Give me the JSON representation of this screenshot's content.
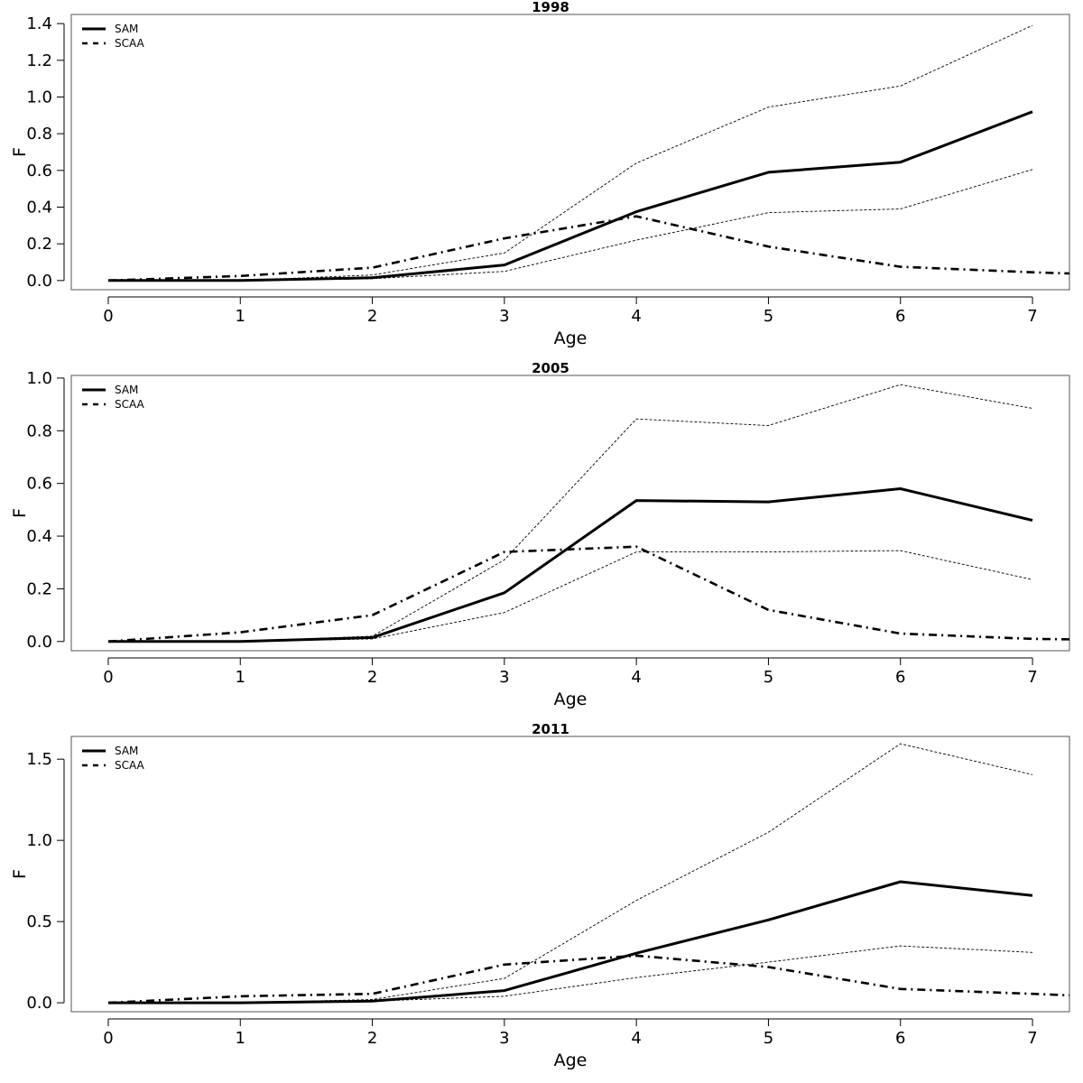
{
  "chart_data": [
    {
      "type": "line",
      "title": "1998",
      "xlabel": "Age",
      "ylabel": "F",
      "x": [
        0,
        1,
        2,
        3,
        4,
        5,
        6,
        7
      ],
      "xlim": [
        -0.28,
        7.28
      ],
      "ylim": [
        -0.05,
        1.45
      ],
      "yticks": [
        0.0,
        0.2,
        0.4,
        0.6,
        0.8,
        1.0,
        1.2,
        1.4
      ],
      "ytick_labels": [
        "0.0",
        "0.2",
        "0.4",
        "0.6",
        "0.8",
        "1.0",
        "1.2",
        "1.4"
      ],
      "xtick_labels": [
        "0",
        "1",
        "2",
        "3",
        "4",
        "5",
        "6",
        "7"
      ],
      "legend": {
        "position": "top-left",
        "entries": [
          "SAM",
          "SCAA"
        ]
      },
      "series": [
        {
          "name": "SAM",
          "style": "solid",
          "values": [
            0.0,
            0.0,
            0.015,
            0.085,
            0.375,
            0.59,
            0.645,
            0.92
          ]
        },
        {
          "name": "SCAA",
          "style": "dashdot",
          "x": [
            0,
            1,
            2,
            3,
            4,
            5,
            6,
            7,
            7.3
          ],
          "values": [
            0.0,
            0.025,
            0.07,
            0.23,
            0.35,
            0.185,
            0.075,
            0.045,
            0.038
          ]
        },
        {
          "name": "",
          "style": "dotted",
          "values": [
            0.0,
            0.0,
            0.03,
            0.15,
            0.64,
            0.945,
            1.06,
            1.39
          ]
        },
        {
          "name": "",
          "style": "dotted",
          "values": [
            0.0,
            0.0,
            0.01,
            0.05,
            0.22,
            0.37,
            0.39,
            0.605
          ]
        }
      ]
    },
    {
      "type": "line",
      "title": "2005",
      "xlabel": "Age",
      "ylabel": "F",
      "x": [
        0,
        1,
        2,
        3,
        4,
        5,
        6,
        7
      ],
      "xlim": [
        -0.28,
        7.28
      ],
      "ylim": [
        -0.035,
        1.01
      ],
      "yticks": [
        0.0,
        0.2,
        0.4,
        0.6,
        0.8,
        1.0
      ],
      "ytick_labels": [
        "0.0",
        "0.2",
        "0.4",
        "0.6",
        "0.8",
        "1.0"
      ],
      "xtick_labels": [
        "0",
        "1",
        "2",
        "3",
        "4",
        "5",
        "6",
        "7"
      ],
      "legend": {
        "position": "top-left",
        "entries": [
          "SAM",
          "SCAA"
        ]
      },
      "series": [
        {
          "name": "SAM",
          "style": "solid",
          "values": [
            0.0,
            0.0,
            0.015,
            0.185,
            0.535,
            0.53,
            0.58,
            0.46
          ]
        },
        {
          "name": "SCAA",
          "style": "dashdot",
          "x": [
            0,
            1,
            2,
            3,
            4,
            5,
            6,
            7,
            7.3
          ],
          "values": [
            0.0,
            0.035,
            0.1,
            0.34,
            0.36,
            0.12,
            0.03,
            0.01,
            0.008
          ]
        },
        {
          "name": "",
          "style": "dotted",
          "values": [
            0.0,
            0.0,
            0.02,
            0.31,
            0.845,
            0.82,
            0.975,
            0.885
          ]
        },
        {
          "name": "",
          "style": "dotted",
          "values": [
            0.0,
            0.0,
            0.01,
            0.11,
            0.34,
            0.34,
            0.345,
            0.235
          ]
        }
      ]
    },
    {
      "type": "line",
      "title": "2011",
      "xlabel": "Age",
      "ylabel": "F",
      "x": [
        0,
        1,
        2,
        3,
        4,
        5,
        6,
        7
      ],
      "xlim": [
        -0.28,
        7.28
      ],
      "ylim": [
        -0.055,
        1.64
      ],
      "yticks": [
        0.0,
        0.5,
        1.0,
        1.5
      ],
      "ytick_labels": [
        "0.0",
        "0.5",
        "1.0",
        "1.5"
      ],
      "xtick_labels": [
        "0",
        "1",
        "2",
        "3",
        "4",
        "5",
        "6",
        "7"
      ],
      "legend": {
        "position": "top-left",
        "entries": [
          "SAM",
          "SCAA"
        ]
      },
      "series": [
        {
          "name": "SAM",
          "style": "solid",
          "values": [
            0.0,
            0.0,
            0.01,
            0.075,
            0.305,
            0.51,
            0.745,
            0.66
          ]
        },
        {
          "name": "SCAA",
          "style": "dashdot",
          "x": [
            0,
            1,
            2,
            3,
            4,
            5,
            6,
            7,
            7.3
          ],
          "values": [
            0.0,
            0.04,
            0.055,
            0.235,
            0.29,
            0.22,
            0.085,
            0.055,
            0.045
          ]
        },
        {
          "name": "",
          "style": "dotted",
          "values": [
            0.0,
            0.0,
            0.02,
            0.15,
            0.63,
            1.05,
            1.595,
            1.405
          ]
        },
        {
          "name": "",
          "style": "dotted",
          "values": [
            0.0,
            0.0,
            0.01,
            0.04,
            0.155,
            0.25,
            0.35,
            0.31
          ]
        }
      ]
    }
  ]
}
